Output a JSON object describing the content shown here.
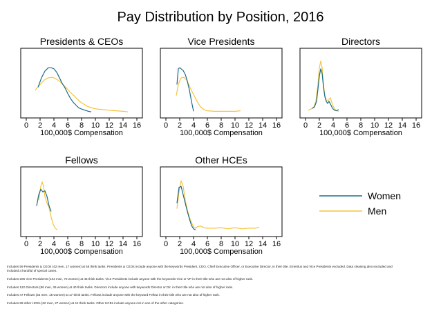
{
  "chart_data": {
    "type": "line",
    "title": "Pay Distribution by Position, 2016",
    "xlim": [
      0,
      16
    ],
    "x_ticks": [
      0,
      2,
      4,
      6,
      8,
      10,
      12,
      14,
      16
    ],
    "xlabel": "100,000$ Compensation",
    "legend": {
      "placement": "right",
      "entries": [
        {
          "name": "Women",
          "color": "#1a6b8a"
        },
        {
          "name": "Men",
          "color": "#f5c33b"
        }
      ]
    },
    "panels": [
      {
        "title": "Presidents & CEOs",
        "series": [
          {
            "name": "Women",
            "x": [
              1.7,
              2.2,
              2.7,
              3.2,
              3.6,
              4.0,
              4.4,
              4.8,
              5.2,
              5.6,
              6.0,
              6.4,
              6.8,
              7.2,
              7.6,
              8.0,
              8.5,
              9.0,
              9.4
            ],
            "y": [
              0.45,
              0.62,
              0.74,
              0.8,
              0.8,
              0.78,
              0.72,
              0.62,
              0.52,
              0.44,
              0.34,
              0.25,
              0.18,
              0.13,
              0.08,
              0.06,
              0.04,
              0.02,
              0.01
            ]
          },
          {
            "name": "Men",
            "x": [
              1.3,
              2.0,
              2.6,
              3.2,
              3.8,
              4.3,
              4.8,
              5.3,
              5.8,
              6.3,
              6.8,
              7.3,
              7.8,
              8.3,
              8.8,
              9.5,
              10.2,
              11.0,
              12.0,
              13.0,
              14.0,
              14.7
            ],
            "y": [
              0.4,
              0.5,
              0.58,
              0.62,
              0.63,
              0.6,
              0.56,
              0.5,
              0.44,
              0.37,
              0.31,
              0.25,
              0.19,
              0.15,
              0.11,
              0.08,
              0.06,
              0.05,
              0.04,
              0.03,
              0.02,
              0.01
            ]
          }
        ]
      },
      {
        "title": "Vice Presidents",
        "series": [
          {
            "name": "Women",
            "x": [
              1.6,
              1.8,
              2.0,
              2.2,
              2.5,
              2.8,
              3.1,
              3.4,
              3.7,
              4.0
            ],
            "y": [
              0.5,
              0.78,
              0.8,
              0.78,
              0.75,
              0.68,
              0.56,
              0.4,
              0.2,
              0.02
            ]
          },
          {
            "name": "Men",
            "x": [
              1.5,
              1.8,
              2.1,
              2.4,
              2.7,
              3.0,
              3.3,
              3.6,
              4.0,
              4.5,
              5.0,
              5.5,
              6.0,
              7.0,
              8.0,
              9.0,
              10.0,
              10.8
            ],
            "y": [
              0.3,
              0.5,
              0.6,
              0.63,
              0.62,
              0.58,
              0.5,
              0.42,
              0.32,
              0.2,
              0.1,
              0.05,
              0.03,
              0.02,
              0.02,
              0.02,
              0.02,
              0.03
            ]
          }
        ]
      },
      {
        "title": "Directors",
        "series": [
          {
            "name": "Women",
            "x": [
              1.0,
              1.3,
              1.6,
              1.8,
              2.0,
              2.2,
              2.4,
              2.6,
              2.8,
              3.0,
              3.2,
              3.4,
              3.6,
              3.8,
              4.0,
              4.2,
              4.5,
              4.8
            ],
            "y": [
              0.07,
              0.1,
              0.2,
              0.42,
              0.65,
              0.78,
              0.7,
              0.45,
              0.28,
              0.2,
              0.16,
              0.2,
              0.15,
              0.1,
              0.06,
              0.04,
              0.03,
              0.05
            ]
          },
          {
            "name": "Men",
            "x": [
              0.4,
              0.8,
              1.2,
              1.5,
              1.8,
              2.0,
              2.2,
              2.4,
              2.6,
              2.8,
              3.0,
              3.3,
              3.6,
              3.9,
              4.2,
              4.5,
              4.8
            ],
            "y": [
              0.04,
              0.06,
              0.1,
              0.2,
              0.5,
              0.8,
              0.92,
              0.8,
              0.5,
              0.3,
              0.22,
              0.22,
              0.26,
              0.14,
              0.06,
              0.03,
              0.02
            ]
          }
        ]
      },
      {
        "title": "Fellows",
        "series": [
          {
            "name": "Women",
            "x": [
              1.5,
              1.8,
              2.1,
              2.4,
              2.7,
              3.0,
              3.3,
              3.6
            ],
            "y": [
              0.45,
              0.65,
              0.75,
              0.7,
              0.72,
              0.62,
              0.45,
              0.35
            ]
          },
          {
            "name": "Men",
            "x": [
              1.8,
              2.1,
              2.3,
              2.5,
              2.7,
              3.0,
              3.3,
              3.6,
              3.9,
              4.2,
              4.5
            ],
            "y": [
              0.55,
              0.8,
              0.88,
              0.8,
              0.62,
              0.5,
              0.42,
              0.25,
              0.12,
              0.05,
              0.02
            ]
          }
        ]
      },
      {
        "title": "Other HCEs",
        "series": [
          {
            "name": "Women",
            "x": [
              1.6,
              1.9,
              2.2,
              2.5,
              2.8,
              3.1,
              3.4,
              3.7,
              4.0,
              4.3
            ],
            "y": [
              0.5,
              0.78,
              0.8,
              0.65,
              0.5,
              0.35,
              0.22,
              0.1,
              0.04,
              0.02
            ]
          },
          {
            "name": "Men",
            "x": [
              1.6,
              1.9,
              2.2,
              2.5,
              2.8,
              3.1,
              3.4,
              3.7,
              4.0,
              4.3,
              4.6,
              5.0,
              5.5,
              6.0,
              7.0,
              8.0,
              9.0,
              10.0,
              11.0,
              12.0,
              13.0,
              13.5
            ],
            "y": [
              0.4,
              0.7,
              0.9,
              0.8,
              0.55,
              0.38,
              0.25,
              0.15,
              0.08,
              0.05,
              0.08,
              0.09,
              0.06,
              0.05,
              0.05,
              0.06,
              0.04,
              0.06,
              0.04,
              0.05,
              0.05,
              0.07
            ]
          }
        ]
      }
    ]
  },
  "notes": [
    "Includes 59 Presidents & CEOs (42 men, 17 women) at 56 think tanks. Presidents & CEOs include anyone with the keywords President, CEO, Chief Executive Officer, or Executive Director, in their title. Emeritus and Vice Presidents excluded. Data cleaning also excluded and included a handful of special cases.",
    "Includes 206 Vice Presidents (134 men, 72 women) at 46 think tanks. Vice Presidents include anyone with the keywords Vice or VP in their title who are not also of higher rank.",
    "Includes 122 Directors (86 men, 36 women) at 40 think tanks. Directors include anyone with keywords Director or Dir. in their title who are not also of higher rank.",
    "Includes 47 Fellows (32 men, 15 women) at 17 think tanks. Fellows include anyone with the keyword Fellow in their title who are not also of higher rank.",
    "Includes 89 other HCEs (62 men, 27 women) at 41 think tanks. Other HCEs include anyone not in one of the other categories."
  ]
}
